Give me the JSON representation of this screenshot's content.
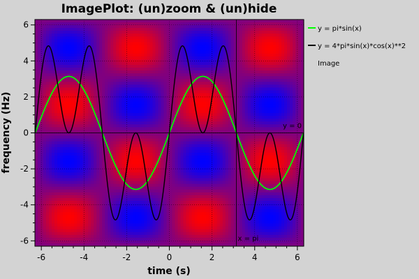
{
  "chart_data": {
    "type": "line",
    "title": "ImagePlot: (un)zoom & (un)hide",
    "xlabel": "time (s)",
    "ylabel": "frequency (Hz)",
    "xlim": [
      -6.3,
      6.3
    ],
    "ylim": [
      -6.3,
      6.3
    ],
    "x_ticks": [
      -6,
      -4,
      -2,
      0,
      2,
      4,
      6
    ],
    "y_ticks": [
      -6,
      -4,
      -2,
      0,
      2,
      4,
      6
    ],
    "grid": true,
    "legend_position": "right",
    "background_image": {
      "name": "Image",
      "description_of_values": "z = sin(x) * sin(y)",
      "colormap": [
        "#0000ff",
        "#ff0000"
      ]
    },
    "series": [
      {
        "name": "y = pi*sin(x)",
        "color": "#00ff00",
        "x_range": [
          -6.2832,
          6.2832
        ],
        "samples": 400
      },
      {
        "name": "y = 4*pi*sin(x)*cos(x)**2",
        "color": "#000000",
        "x_range": [
          -6.2832,
          6.2832
        ],
        "samples": 800
      }
    ],
    "markers": [
      {
        "label": "y = 0",
        "orientation": "horizontal",
        "value": 0
      },
      {
        "label": "x = pi",
        "orientation": "vertical",
        "value": 3.14159
      }
    ],
    "legend": [
      {
        "label": "y = pi*sin(x)",
        "color": "#00ff00"
      },
      {
        "label": "y = 4*pi*sin(x)*cos(x)**2",
        "color": "#000000"
      },
      {
        "label": "Image",
        "color": ""
      }
    ]
  }
}
